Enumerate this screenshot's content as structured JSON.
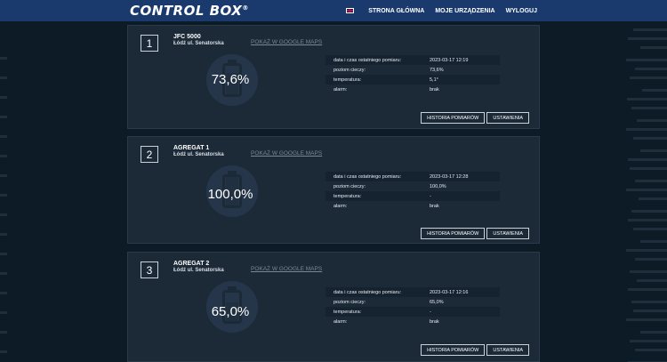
{
  "header": {
    "logo_text": "CONTROL BOX",
    "logo_mark": "®",
    "flag_icon": "uk-flag-icon",
    "nav": [
      {
        "label": "STRONA GŁÓWNA"
      },
      {
        "label": "MOJE URZĄDZENIA"
      },
      {
        "label": "WYLOGUJ"
      }
    ]
  },
  "labels": {
    "maps_link": "POKAŻ W GOOGLE MAPS",
    "history_button": "HISTORIA POMIARÓW",
    "settings_button": "USTAWIENIA",
    "field_date": "data i czas ostatniego pomiaru:",
    "field_level": "poziom cieczy:",
    "field_temp": "temperatura:",
    "field_alarm": "alarm:"
  },
  "devices": [
    {
      "number": "1",
      "name": "JFC 5000",
      "address": "Łódź ul. Senatorska",
      "gauge_value": "73,6%",
      "level_fraction": 0.736,
      "date": "2023-03-17 12:19",
      "level": "73,6%",
      "temperature": "5,1°",
      "alarm": "brak"
    },
    {
      "number": "2",
      "name": "AGREGAT 1",
      "address": "Łódź ul. Senatorska",
      "gauge_value": "100,0%",
      "level_fraction": 1.0,
      "date": "2023-03-17 12:28",
      "level": "100,0%",
      "temperature": "-",
      "alarm": "brak"
    },
    {
      "number": "3",
      "name": "AGREGAT 2",
      "address": "Łódź ul. Senatorska",
      "gauge_value": "65,0%",
      "level_fraction": 0.65,
      "date": "2023-03-17 12:16",
      "level": "65,0%",
      "temperature": "-",
      "alarm": "brak"
    }
  ],
  "colors": {
    "background": "#0d1b27",
    "header": "#1a3a6e",
    "card": "#1c2a38",
    "gauge": "#26364a"
  }
}
